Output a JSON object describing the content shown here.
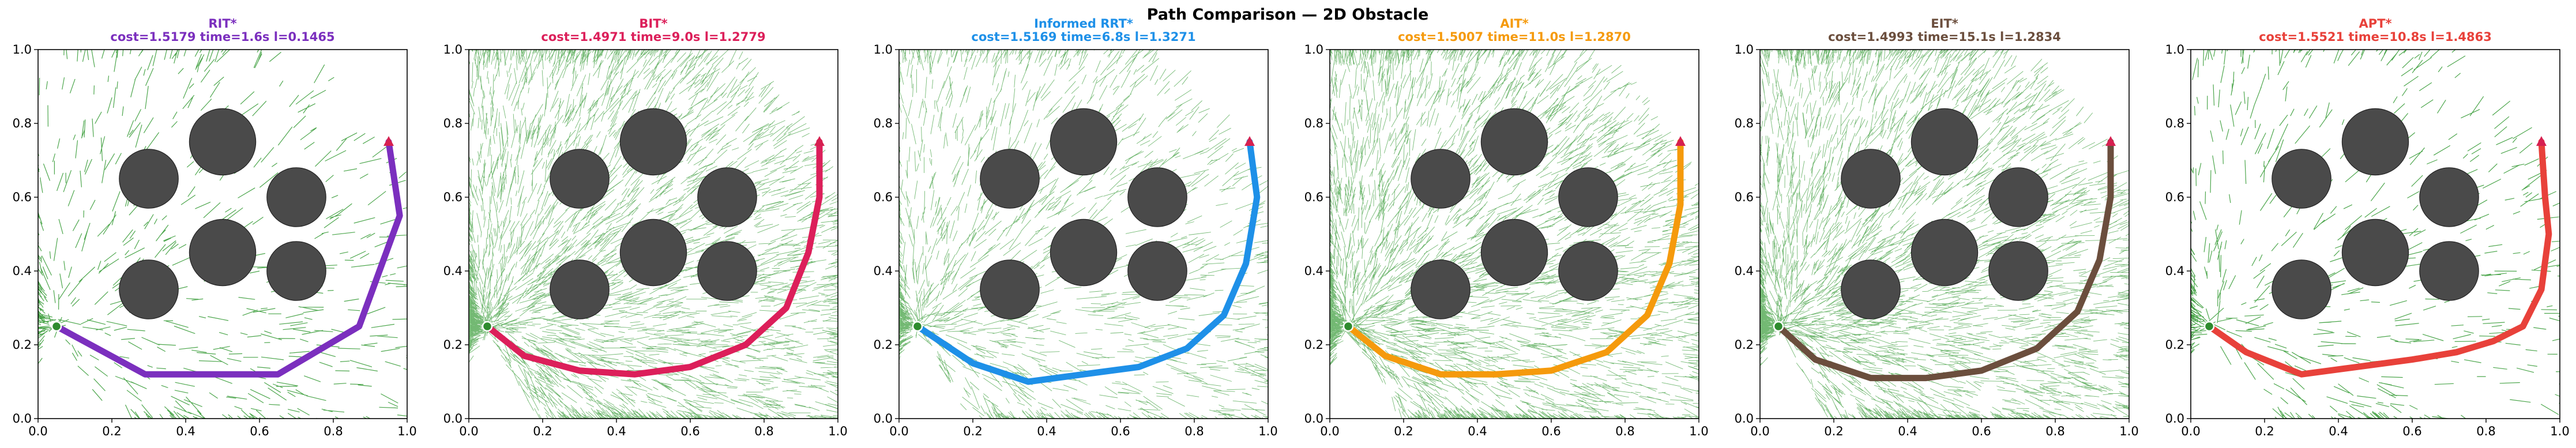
{
  "figure_title": "Path Comparison — 2D Obstacle",
  "colors": {
    "tree": "#008000",
    "obstacle": "#4a4a4a",
    "start": "#2e8b2e",
    "goal": "#d62050"
  },
  "chart_data": [
    {
      "type": "line",
      "title": "RIT*",
      "subtitle": "cost=1.5179  time=1.6s  l=0.1465",
      "color": "#7b2fbe",
      "tree_density": "sparse",
      "xlim": [
        0,
        1
      ],
      "ylim": [
        0,
        1
      ],
      "xticks": [
        "0.0",
        "0.2",
        "0.4",
        "0.6",
        "0.8",
        "1.0"
      ],
      "yticks": [
        "0.0",
        "0.2",
        "0.4",
        "0.6",
        "0.8",
        "1.0"
      ],
      "obstacles": [
        [
          0.3,
          0.65,
          0.08
        ],
        [
          0.5,
          0.75,
          0.09
        ],
        [
          0.7,
          0.6,
          0.08
        ],
        [
          0.3,
          0.35,
          0.08
        ],
        [
          0.5,
          0.45,
          0.09
        ],
        [
          0.7,
          0.4,
          0.08
        ]
      ],
      "start": [
        0.05,
        0.25
      ],
      "goal": [
        0.95,
        0.75
      ],
      "path": {
        "x": [
          0.05,
          0.29,
          0.65,
          0.87,
          0.98,
          0.95
        ],
        "y": [
          0.25,
          0.12,
          0.12,
          0.25,
          0.55,
          0.75
        ]
      }
    },
    {
      "type": "line",
      "title": "BIT*",
      "subtitle": "cost=1.4971  time=9.0s  l=1.2779",
      "color": "#dc1f5a",
      "tree_density": "dense",
      "xlim": [
        0,
        1
      ],
      "ylim": [
        0,
        1
      ],
      "xticks": [
        "0.0",
        "0.2",
        "0.4",
        "0.6",
        "0.8",
        "1.0"
      ],
      "yticks": [
        "0.0",
        "0.2",
        "0.4",
        "0.6",
        "0.8",
        "1.0"
      ],
      "obstacles": [
        [
          0.3,
          0.65,
          0.08
        ],
        [
          0.5,
          0.75,
          0.09
        ],
        [
          0.7,
          0.6,
          0.08
        ],
        [
          0.3,
          0.35,
          0.08
        ],
        [
          0.5,
          0.45,
          0.09
        ],
        [
          0.7,
          0.4,
          0.08
        ]
      ],
      "start": [
        0.05,
        0.25
      ],
      "goal": [
        0.95,
        0.75
      ],
      "path": {
        "x": [
          0.05,
          0.15,
          0.3,
          0.45,
          0.6,
          0.75,
          0.86,
          0.92,
          0.95,
          0.95
        ],
        "y": [
          0.25,
          0.17,
          0.13,
          0.12,
          0.14,
          0.2,
          0.3,
          0.45,
          0.6,
          0.75
        ]
      }
    },
    {
      "type": "line",
      "title": "Informed RRT*",
      "subtitle": "cost=1.5169  time=6.8s  l=1.3271",
      "color": "#1e90e8",
      "tree_density": "medium",
      "xlim": [
        0,
        1
      ],
      "ylim": [
        0,
        1
      ],
      "xticks": [
        "0.0",
        "0.2",
        "0.4",
        "0.6",
        "0.8",
        "1.0"
      ],
      "yticks": [
        "0.0",
        "0.2",
        "0.4",
        "0.6",
        "0.8",
        "1.0"
      ],
      "obstacles": [
        [
          0.3,
          0.65,
          0.08
        ],
        [
          0.5,
          0.75,
          0.09
        ],
        [
          0.7,
          0.6,
          0.08
        ],
        [
          0.3,
          0.35,
          0.08
        ],
        [
          0.5,
          0.45,
          0.09
        ],
        [
          0.7,
          0.4,
          0.08
        ]
      ],
      "start": [
        0.05,
        0.25
      ],
      "goal": [
        0.95,
        0.75
      ],
      "path": {
        "x": [
          0.05,
          0.2,
          0.35,
          0.5,
          0.65,
          0.78,
          0.88,
          0.94,
          0.97,
          0.95
        ],
        "y": [
          0.25,
          0.15,
          0.1,
          0.12,
          0.14,
          0.19,
          0.28,
          0.42,
          0.6,
          0.75
        ]
      }
    },
    {
      "type": "line",
      "title": "AIT*",
      "subtitle": "cost=1.5007  time=11.0s  l=1.2870",
      "color": "#f59a0c",
      "tree_density": "dense",
      "xlim": [
        0,
        1
      ],
      "ylim": [
        0,
        1
      ],
      "xticks": [
        "0.0",
        "0.2",
        "0.4",
        "0.6",
        "0.8",
        "1.0"
      ],
      "yticks": [
        "0.0",
        "0.2",
        "0.4",
        "0.6",
        "0.8",
        "1.0"
      ],
      "obstacles": [
        [
          0.3,
          0.65,
          0.08
        ],
        [
          0.5,
          0.75,
          0.09
        ],
        [
          0.7,
          0.6,
          0.08
        ],
        [
          0.3,
          0.35,
          0.08
        ],
        [
          0.5,
          0.45,
          0.09
        ],
        [
          0.7,
          0.4,
          0.08
        ]
      ],
      "start": [
        0.05,
        0.25
      ],
      "goal": [
        0.95,
        0.75
      ],
      "path": {
        "x": [
          0.05,
          0.15,
          0.3,
          0.45,
          0.6,
          0.75,
          0.86,
          0.92,
          0.95,
          0.95
        ],
        "y": [
          0.25,
          0.17,
          0.12,
          0.12,
          0.13,
          0.18,
          0.28,
          0.42,
          0.58,
          0.75
        ]
      }
    },
    {
      "type": "line",
      "title": "EIT*",
      "subtitle": "cost=1.4993  time=15.1s  l=1.2834",
      "color": "#6b4e3d",
      "tree_density": "dense",
      "xlim": [
        0,
        1
      ],
      "ylim": [
        0,
        1
      ],
      "xticks": [
        "0.0",
        "0.2",
        "0.4",
        "0.6",
        "0.8",
        "1.0"
      ],
      "yticks": [
        "0.0",
        "0.2",
        "0.4",
        "0.6",
        "0.8",
        "1.0"
      ],
      "obstacles": [
        [
          0.3,
          0.65,
          0.08
        ],
        [
          0.5,
          0.75,
          0.09
        ],
        [
          0.7,
          0.6,
          0.08
        ],
        [
          0.3,
          0.35,
          0.08
        ],
        [
          0.5,
          0.45,
          0.09
        ],
        [
          0.7,
          0.4,
          0.08
        ]
      ],
      "start": [
        0.05,
        0.25
      ],
      "goal": [
        0.95,
        0.75
      ],
      "path": {
        "x": [
          0.05,
          0.15,
          0.3,
          0.45,
          0.6,
          0.75,
          0.86,
          0.92,
          0.95,
          0.95
        ],
        "y": [
          0.25,
          0.16,
          0.11,
          0.11,
          0.13,
          0.19,
          0.29,
          0.43,
          0.6,
          0.75
        ]
      }
    },
    {
      "type": "line",
      "title": "APT*",
      "subtitle": "cost=1.5521  time=10.8s  l=1.4863",
      "color": "#e8413a",
      "tree_density": "sparse",
      "xlim": [
        0,
        1
      ],
      "ylim": [
        0,
        1
      ],
      "xticks": [
        "0.0",
        "0.2",
        "0.4",
        "0.6",
        "0.8",
        "1.0"
      ],
      "yticks": [
        "0.0",
        "0.2",
        "0.4",
        "0.6",
        "0.8",
        "1.0"
      ],
      "obstacles": [
        [
          0.3,
          0.65,
          0.08
        ],
        [
          0.5,
          0.75,
          0.09
        ],
        [
          0.7,
          0.6,
          0.08
        ],
        [
          0.3,
          0.35,
          0.08
        ],
        [
          0.5,
          0.45,
          0.09
        ],
        [
          0.7,
          0.4,
          0.08
        ]
      ],
      "start": [
        0.05,
        0.25
      ],
      "goal": [
        0.95,
        0.75
      ],
      "path": {
        "x": [
          0.05,
          0.15,
          0.3,
          0.45,
          0.6,
          0.72,
          0.82,
          0.9,
          0.95,
          0.97,
          0.96,
          0.95
        ],
        "y": [
          0.25,
          0.18,
          0.12,
          0.14,
          0.16,
          0.18,
          0.21,
          0.25,
          0.35,
          0.5,
          0.6,
          0.75
        ]
      }
    }
  ]
}
